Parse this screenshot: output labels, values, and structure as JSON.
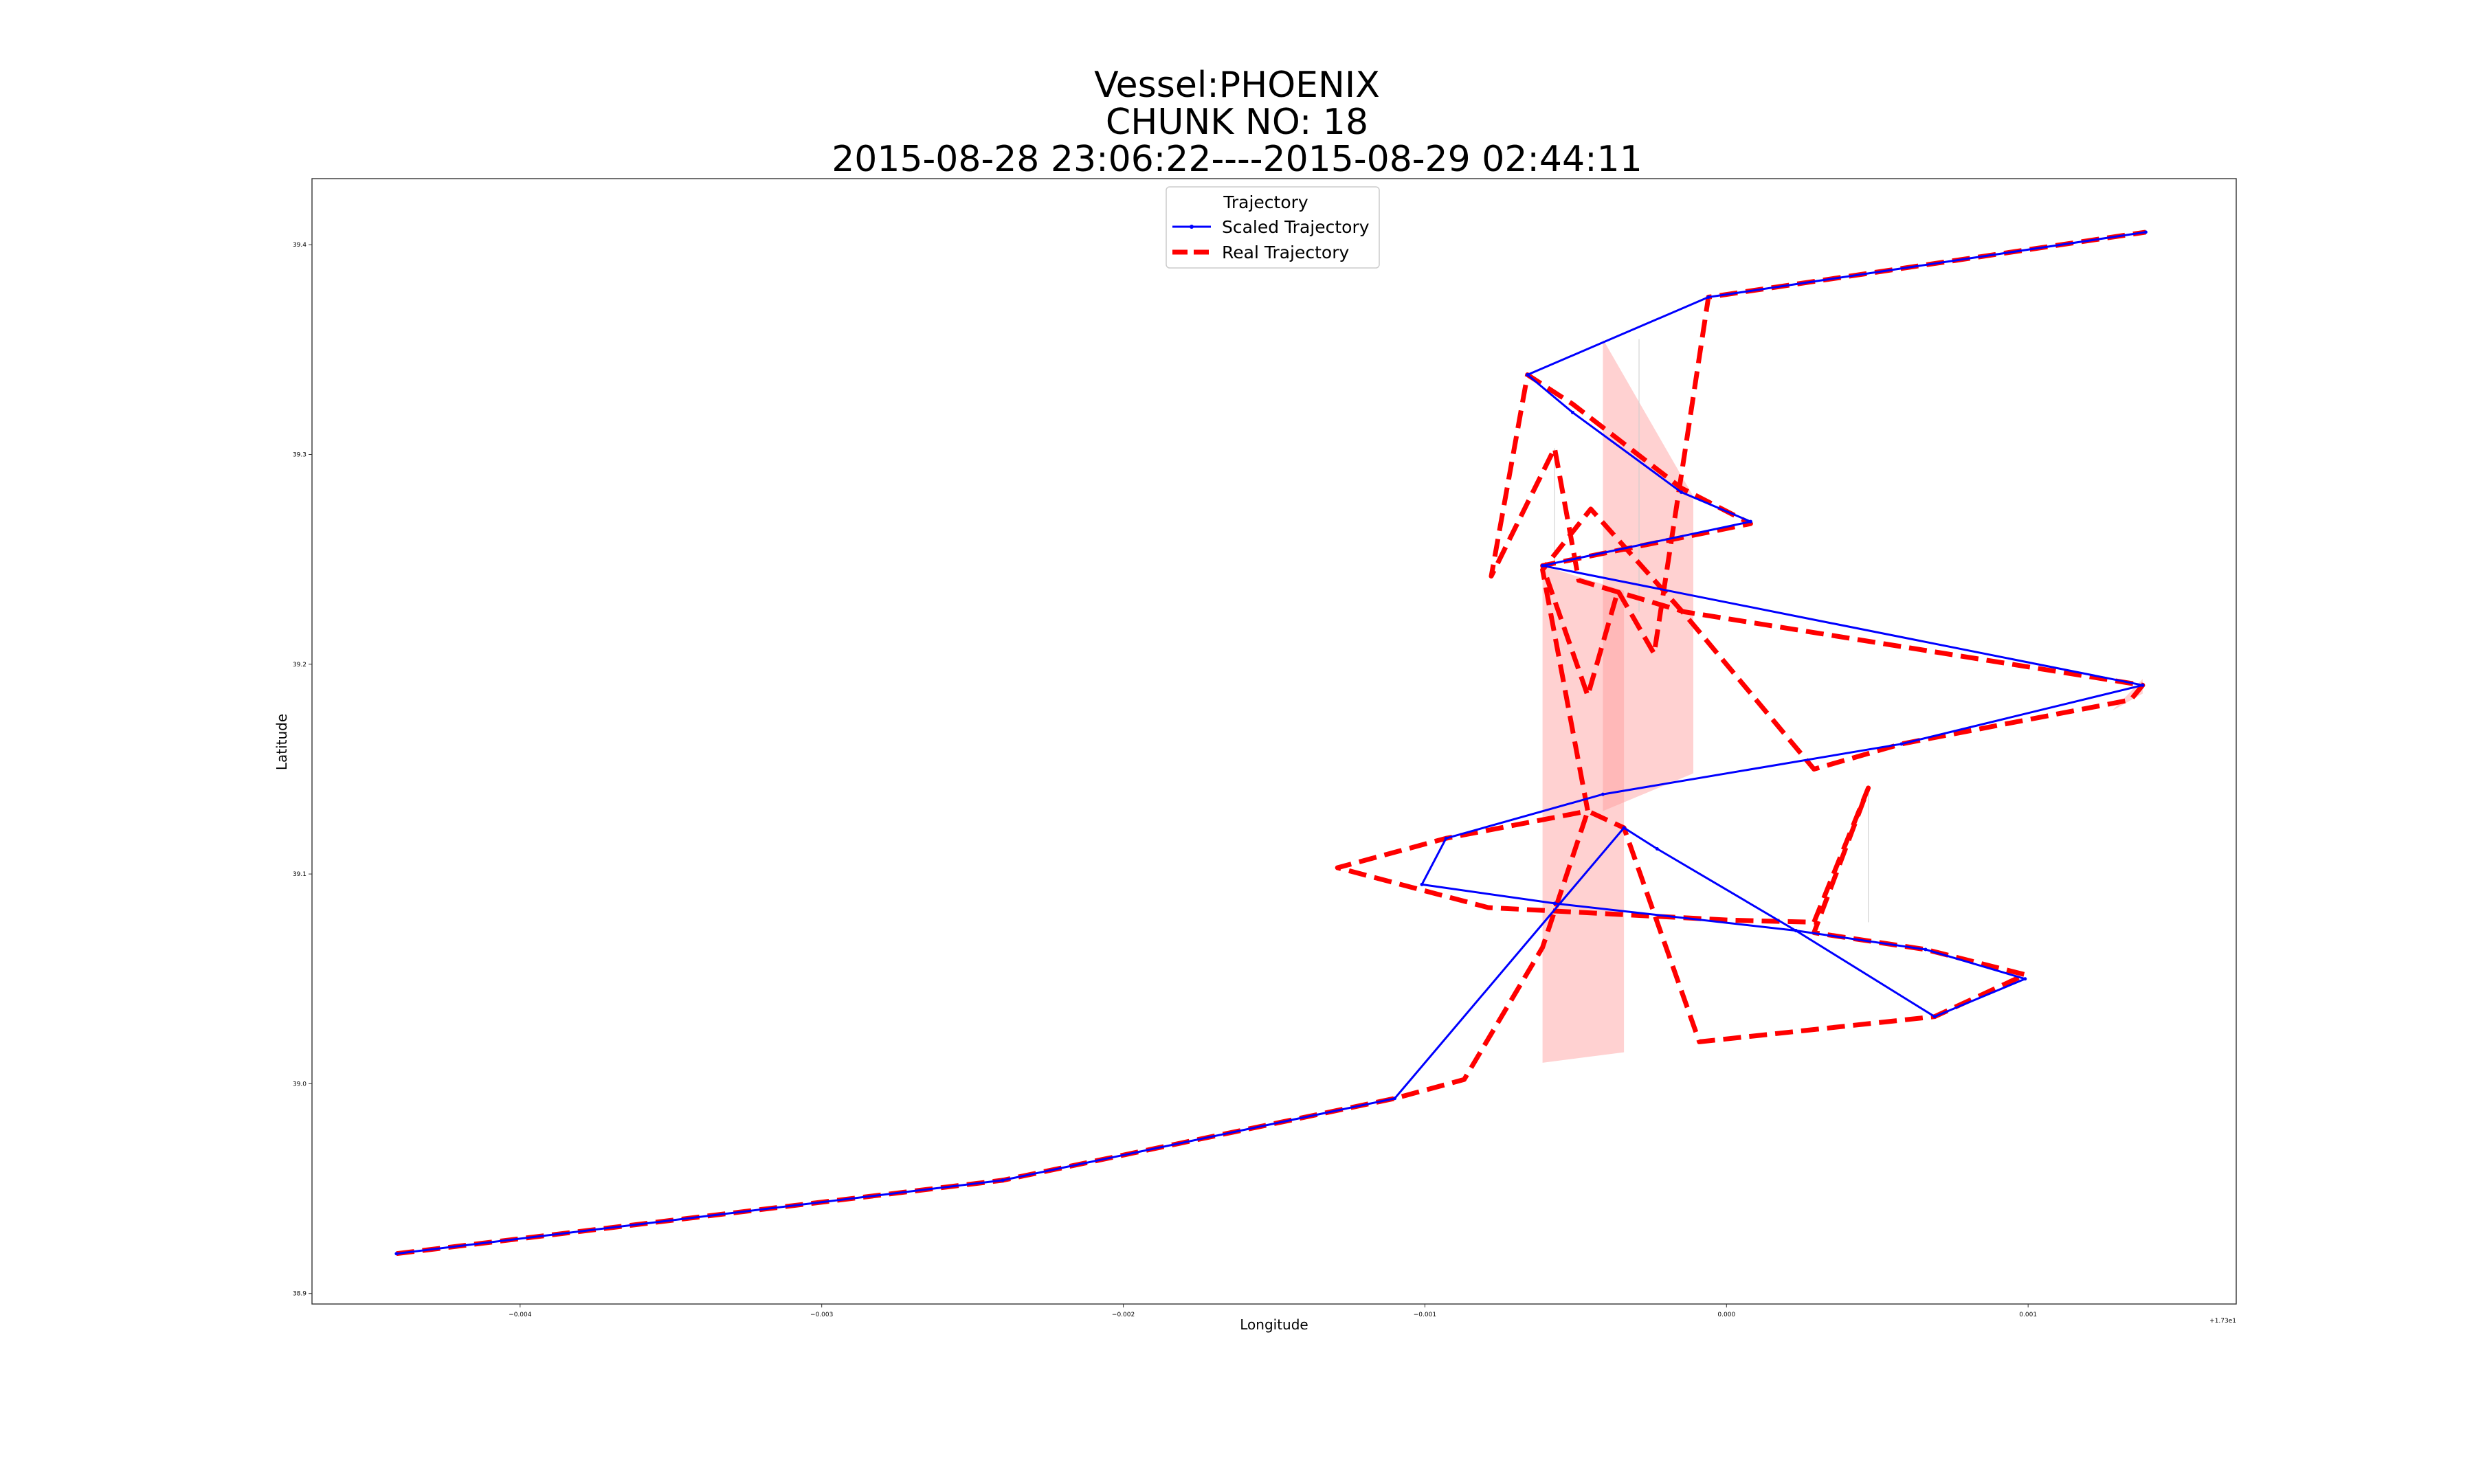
{
  "chart_data": {
    "type": "line",
    "title": "Vessel:PHOENIX",
    "subtitle": "CHUNK NO: 18",
    "time_range": "2015-08-28 23:06:22----2015-08-29 02:44:11",
    "xlabel": "Longitude",
    "ylabel": "Latitude",
    "x_offset_label": "+1.73e1",
    "xlim": [
      -0.00469,
      0.00169
    ],
    "ylim": [
      38.895,
      39.4315
    ],
    "x_ticks": [
      -0.004,
      -0.003,
      -0.002,
      -0.001,
      0.0,
      0.001
    ],
    "x_tick_labels": [
      "−0.004",
      "−0.003",
      "−0.002",
      "−0.001",
      "0.000",
      "0.001"
    ],
    "y_ticks": [
      38.9,
      39.0,
      39.1,
      39.2,
      39.3,
      39.4
    ],
    "y_tick_labels": [
      "38.9",
      "39.0",
      "39.1",
      "39.2",
      "39.3",
      "39.4"
    ],
    "grid": false,
    "legend": {
      "title": "Trajectory",
      "placement": "top-center",
      "entries": [
        "Scaled Trajectory",
        "Real Trajectory"
      ]
    },
    "colors": {
      "scaled": "#0000ff",
      "real": "#ff0000",
      "band": "#ff9999"
    },
    "series": [
      {
        "name": "Scaled Trajectory",
        "points": [
          [
            -0.00441,
            38.919
          ],
          [
            -0.0024,
            38.954
          ],
          [
            -0.0011,
            38.993
          ],
          [
            -0.00034,
            39.122
          ],
          [
            -0.00023,
            39.112
          ],
          [
            0.00023,
            39.073
          ],
          [
            0.00069,
            39.032
          ],
          [
            0.00099,
            39.05
          ],
          [
            0.00066,
            39.064
          ],
          [
            0.00023,
            39.073
          ],
          [
            -0.00057,
            39.086
          ],
          [
            -0.00101,
            39.095
          ],
          [
            -0.00093,
            39.117
          ],
          [
            -0.00041,
            39.138
          ],
          [
            0.00058,
            39.162
          ],
          [
            0.00138,
            39.19
          ],
          [
            -0.00061,
            39.247
          ],
          [
            8e-05,
            39.268
          ],
          [
            -0.00015,
            39.282
          ],
          [
            -0.00051,
            39.32
          ],
          [
            -0.00066,
            39.338
          ],
          [
            -6e-05,
            39.375
          ],
          [
            0.00139,
            39.406
          ]
        ]
      },
      {
        "name": "Real Trajectory",
        "points": [
          [
            -0.00441,
            38.919
          ],
          [
            -0.0024,
            38.954
          ],
          [
            -0.0011,
            38.993
          ],
          [
            -0.00087,
            39.002
          ],
          [
            -0.00061,
            39.065
          ],
          [
            -0.00046,
            39.13
          ],
          [
            -0.00034,
            39.122
          ],
          [
            -9e-05,
            39.02
          ],
          [
            0.00069,
            39.032
          ],
          [
            0.00099,
            39.052
          ],
          [
            0.00066,
            39.064
          ],
          [
            0.00029,
            39.072
          ],
          [
            0.00047,
            39.141
          ],
          [
            0.00029,
            39.077
          ],
          [
            1e-05,
            39.078
          ],
          [
            -0.00079,
            39.084
          ],
          [
            -0.00129,
            39.103
          ],
          [
            -0.00093,
            39.117
          ],
          [
            -0.00046,
            39.13
          ],
          [
            -0.00061,
            39.245
          ],
          [
            -0.00045,
            39.274
          ],
          [
            -0.00014,
            39.224
          ],
          [
            0.00029,
            39.15
          ],
          [
            0.00058,
            39.162
          ],
          [
            0.00134,
            39.183
          ],
          [
            0.00138,
            39.19
          ],
          [
            -0.00014,
            39.225
          ],
          [
            -0.00049,
            39.24
          ],
          [
            -0.00057,
            39.303
          ],
          [
            -0.00078,
            39.242
          ],
          [
            -0.00066,
            39.338
          ],
          [
            -0.00051,
            39.324
          ],
          [
            -0.00015,
            39.284
          ],
          [
            8e-05,
            39.267
          ],
          [
            -0.00061,
            39.247
          ],
          [
            -0.00046,
            39.185
          ],
          [
            -0.00036,
            39.235
          ],
          [
            -0.00024,
            39.205
          ],
          [
            -6e-05,
            39.375
          ],
          [
            0.00139,
            39.406
          ]
        ]
      }
    ],
    "bands": [
      {
        "poly": [
          [
            -0.00061,
            39.247
          ],
          [
            -0.00061,
            39.01
          ],
          [
            -0.00034,
            39.015
          ],
          [
            -0.00034,
            39.235
          ]
        ]
      },
      {
        "poly": [
          [
            -0.00041,
            39.355
          ],
          [
            -0.00011,
            39.28
          ],
          [
            -0.00011,
            39.148
          ],
          [
            -0.00041,
            39.13
          ]
        ]
      },
      {
        "poly": [
          [
            0.00138,
            39.193
          ],
          [
            0.00128,
            39.178
          ],
          [
            0.00138,
            39.186
          ]
        ]
      }
    ],
    "stems": [
      {
        "x": -0.00057,
        "y0": 39.248,
        "y1": 39.303
      },
      {
        "x": -0.00029,
        "y0": 39.225,
        "y1": 39.355
      },
      {
        "x": 0.00047,
        "y0": 39.077,
        "y1": 39.141
      }
    ]
  }
}
